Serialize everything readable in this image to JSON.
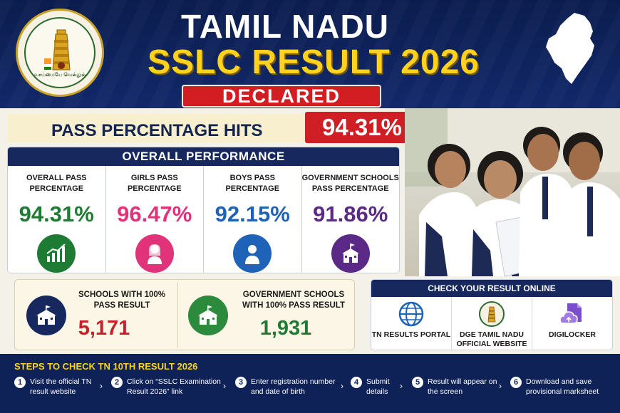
{
  "header": {
    "title_line1": "TAMIL NADU",
    "title_line2": "SSLC RESULT 2026",
    "badge": "DECLARED",
    "emblem_caption": "வாய்மையே வெல்லும்"
  },
  "pass_banner": {
    "label": "PASS PERCENTAGE HITS",
    "value": "94.31%"
  },
  "overall_performance": {
    "title": "OVERALL PERFORMANCE",
    "stats": [
      {
        "label": "OVERALL PASS PERCENTAGE",
        "value": "94.31%",
        "color": "#1e7b34",
        "icon": "growth-chart-icon"
      },
      {
        "label": "GIRLS PASS PERCENTAGE",
        "value": "96.47%",
        "color": "#e0337a",
        "icon": "girl-icon"
      },
      {
        "label": "BOYS PASS PERCENTAGE",
        "value": "92.15%",
        "color": "#1f63b8",
        "icon": "boy-icon"
      },
      {
        "label": "GOVERNMENT SCHOOLS PASS PERCENTAGE",
        "value": "91.86%",
        "color": "#5b2a86",
        "icon": "school-building-icon"
      }
    ]
  },
  "schools": [
    {
      "label": "SCHOOLS WITH 100% PASS RESULT",
      "value": "5,171",
      "color": "#c8202a",
      "icon_bg": "#16285e"
    },
    {
      "label": "GOVERNMENT SCHOOLS WITH 100% PASS RESULT",
      "value": "1,931",
      "color": "#1e7b34",
      "icon_bg": "#2c8a3d"
    }
  ],
  "check_online": {
    "title": "CHECK YOUR RESULT ONLINE",
    "options": [
      {
        "label": "TN RESULTS PORTAL",
        "icon": "globe-icon"
      },
      {
        "label": "DGE TAMIL NADU OFFICIAL WEBSITE",
        "icon": "emblem-icon"
      },
      {
        "label": "DIGILOCKER",
        "icon": "cloud-document-icon"
      }
    ]
  },
  "steps": {
    "title": "STEPS TO CHECK TN 10TH RESULT 2026",
    "items": [
      {
        "num": "1",
        "text": "Visit the official TN result website"
      },
      {
        "num": "2",
        "text": "Click on “SSLC Examination Result 2026” link"
      },
      {
        "num": "3",
        "text": "Enter registration number and date of birth"
      },
      {
        "num": "4",
        "text": "Submit details"
      },
      {
        "num": "5",
        "text": "Result will appear on the screen"
      },
      {
        "num": "6",
        "text": "Download and save provisional marksheet"
      }
    ]
  }
}
